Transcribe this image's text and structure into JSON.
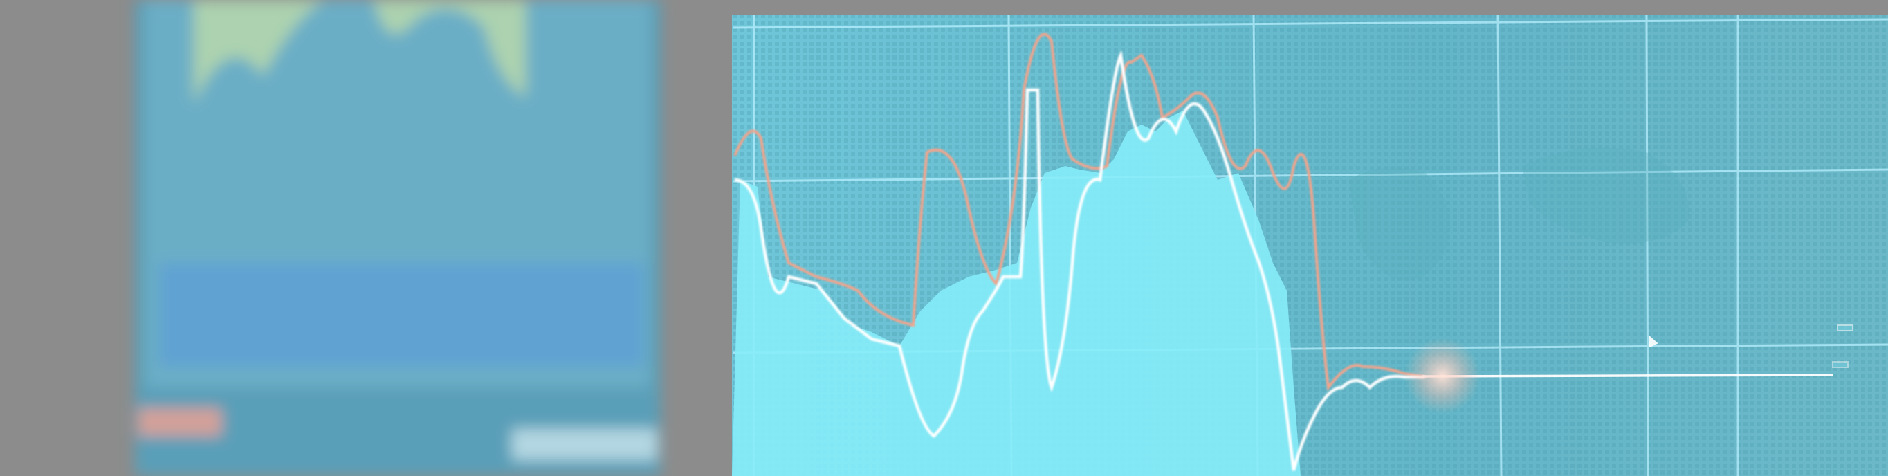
{
  "scene": {
    "description_free": true,
    "colors": {
      "bezel": "#8c8c8c",
      "screen": "#5bb8cc",
      "fill": "#86ecf8",
      "grid": "#b8f0ff",
      "white_line": "#ffffff",
      "orange_line": "#f2a48c",
      "glow": "#ffd0c0"
    },
    "icons": [
      "cursor-icon"
    ]
  },
  "price_tags": {
    "upper_label": "",
    "current_label": ""
  }
}
